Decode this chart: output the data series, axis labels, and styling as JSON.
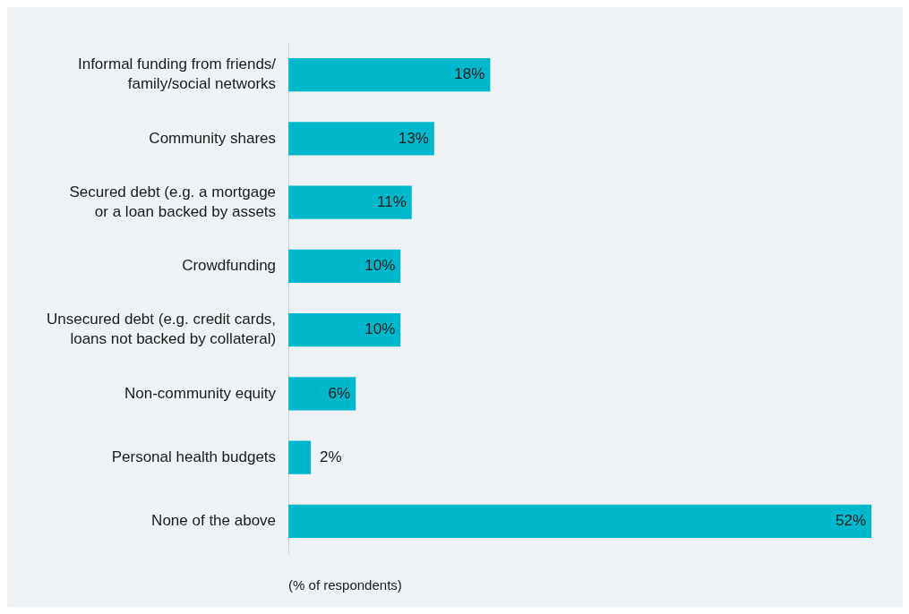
{
  "chart_data": {
    "type": "bar",
    "orientation": "horizontal",
    "xlabel": "(% of respondents)",
    "categories": [
      "Informal funding from friends/\nfamily/social networks",
      "Community shares",
      "Secured debt (e.g. a mortgage\nor a loan backed by assets",
      "Crowdfunding",
      "Unsecured debt (e.g. credit cards,\nloans not backed by collateral)",
      "Non-community equity",
      "Personal health budgets",
      "None of the above"
    ],
    "values": [
      18,
      13,
      11,
      10,
      10,
      6,
      2,
      52
    ],
    "value_labels": [
      "18%",
      "13%",
      "11%",
      "10%",
      "10%",
      "6%",
      "2%",
      "52%"
    ],
    "color": "#00b8cc",
    "grid": false,
    "legend": false,
    "tick_labels": "y"
  }
}
